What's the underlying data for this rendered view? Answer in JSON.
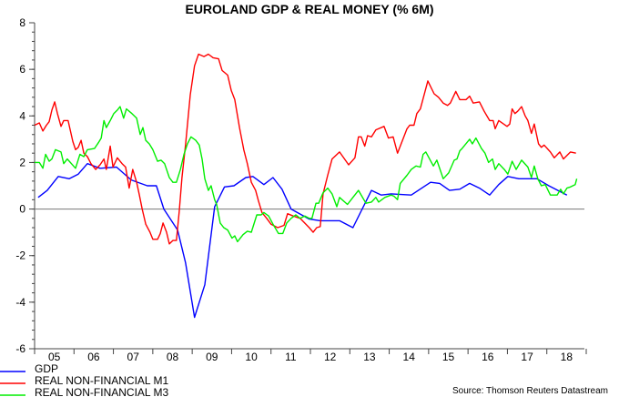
{
  "chart_data": {
    "type": "line",
    "title": "EUROLAND GDP & REAL MONEY (% 6M)",
    "xlabel": "",
    "ylabel": "",
    "xlim": [
      2005,
      2019
    ],
    "ylim": [
      -6,
      8
    ],
    "y_ticks": [
      -6,
      -4,
      -2,
      0,
      2,
      4,
      6,
      8
    ],
    "y_minor_step": 0.4,
    "x_tick_labels": [
      "05",
      "06",
      "07",
      "08",
      "09",
      "10",
      "11",
      "12",
      "13",
      "14",
      "15",
      "16",
      "17",
      "18"
    ],
    "zero_line": true,
    "grid": false,
    "legend_placement": "bottom-left",
    "source": "Source: Thomson Reuters Datastream",
    "series": [
      {
        "name": "GDP",
        "color": "#0000ff",
        "x": [
          2005.09,
          2005.32,
          2005.6,
          2005.88,
          2006.11,
          2006.34,
          2006.66,
          2007.08,
          2007.45,
          2007.86,
          2008.09,
          2008.28,
          2008.63,
          2008.83,
          2009.06,
          2009.32,
          2009.57,
          2009.82,
          2010.06,
          2010.36,
          2010.54,
          2010.82,
          2011.05,
          2011.28,
          2011.51,
          2011.97,
          2012.25,
          2012.74,
          2013.08,
          2013.55,
          2013.8,
          2014.05,
          2014.56,
          2015.05,
          2015.28,
          2015.53,
          2015.79,
          2016.04,
          2016.29,
          2016.55,
          2016.78,
          2017.01,
          2017.29,
          2017.75,
          2018.05,
          2018.51
        ],
        "y": [
          0.5,
          0.8,
          1.4,
          1.3,
          1.5,
          1.95,
          1.75,
          1.8,
          1.25,
          1.0,
          1.0,
          0,
          -0.9,
          -2.3,
          -4.65,
          -3.25,
          0.1,
          0.95,
          1.0,
          1.35,
          1.4,
          1.05,
          1.35,
          0.85,
          0,
          -0.43,
          -0.5,
          -0.5,
          -0.8,
          0.8,
          0.6,
          0.65,
          0.6,
          1.15,
          1.1,
          0.8,
          0.85,
          1.1,
          0.9,
          0.6,
          1.05,
          1.4,
          1.3,
          1.3,
          1.0,
          0.6
        ]
      },
      {
        "name": "REAL NON-FINANCIAL M1",
        "color": "#ff0000",
        "x": [
          2005.0,
          2005.12,
          2005.21,
          2005.3,
          2005.37,
          2005.44,
          2005.51,
          2005.58,
          2005.67,
          2005.74,
          2005.85,
          2005.97,
          2006.04,
          2006.11,
          2006.18,
          2006.25,
          2006.34,
          2006.43,
          2006.55,
          2006.66,
          2006.76,
          2006.82,
          2006.92,
          2006.99,
          2007.1,
          2007.22,
          2007.31,
          2007.4,
          2007.49,
          2007.59,
          2007.66,
          2007.73,
          2007.82,
          2007.93,
          2008.0,
          2008.12,
          2008.19,
          2008.26,
          2008.35,
          2008.42,
          2008.51,
          2008.6,
          2008.67,
          2008.74,
          2008.83,
          2008.95,
          2009.06,
          2009.16,
          2009.3,
          2009.41,
          2009.53,
          2009.67,
          2009.76,
          2009.9,
          2009.99,
          2010.08,
          2010.2,
          2010.31,
          2010.4,
          2010.5,
          2010.61,
          2010.68,
          2010.77,
          2010.89,
          2011.0,
          2011.17,
          2011.33,
          2011.42,
          2011.56,
          2011.74,
          2011.97,
          2012.07,
          2012.16,
          2012.25,
          2012.32,
          2012.44,
          2012.55,
          2012.74,
          2012.97,
          2013.13,
          2013.22,
          2013.29,
          2013.38,
          2013.45,
          2013.55,
          2013.66,
          2013.87,
          2013.98,
          2014.1,
          2014.21,
          2014.45,
          2014.52,
          2014.63,
          2014.7,
          2014.79,
          2014.98,
          2015.14,
          2015.25,
          2015.37,
          2015.48,
          2015.55,
          2015.69,
          2015.79,
          2015.95,
          2016.04,
          2016.13,
          2016.29,
          2016.41,
          2016.55,
          2016.64,
          2016.69,
          2016.78,
          2016.99,
          2017.06,
          2017.12,
          2017.19,
          2017.26,
          2017.36,
          2017.45,
          2017.52,
          2017.61,
          2017.68,
          2017.79,
          2017.86,
          2017.93,
          2018.09,
          2018.19,
          2018.33,
          2018.42,
          2018.6,
          2018.74
        ],
        "y": [
          3.6,
          3.7,
          3.35,
          3.6,
          3.75,
          4.25,
          4.6,
          4.1,
          3.55,
          3.8,
          3.8,
          2.9,
          2.55,
          2.65,
          2.95,
          2.4,
          2.25,
          1.95,
          1.7,
          1.9,
          2.15,
          1.7,
          2.7,
          1.8,
          2.2,
          1.95,
          1.8,
          0.9,
          1.7,
          1.15,
          0.6,
          0,
          -0.65,
          -1.0,
          -1.3,
          -1.3,
          -1.05,
          -0.6,
          -1.0,
          -1.5,
          -1.35,
          -1.35,
          -0.1,
          1.35,
          2.75,
          4.9,
          6.15,
          6.65,
          6.55,
          6.65,
          6.5,
          6.45,
          5.95,
          5.75,
          5.1,
          4.7,
          3.5,
          2.55,
          1.95,
          1.15,
          0.8,
          0.35,
          -0.15,
          -0.4,
          -0.65,
          -0.8,
          -0.7,
          -0.2,
          -0.3,
          -0.4,
          -0.8,
          -1.0,
          -0.8,
          -0.75,
          0.65,
          1.45,
          2.15,
          2.45,
          1.9,
          2.2,
          3.1,
          3.1,
          2.7,
          3.15,
          3.1,
          3.4,
          3.55,
          3.05,
          3.1,
          2.4,
          3.45,
          3.6,
          3.6,
          4.1,
          4.3,
          5.5,
          4.95,
          4.8,
          4.55,
          4.45,
          4.55,
          5.05,
          4.7,
          4.7,
          4.85,
          4.55,
          4.6,
          4.2,
          3.8,
          3.8,
          3.45,
          3.8,
          3.55,
          3.65,
          4.3,
          4.1,
          4.2,
          4.4,
          4.0,
          3.8,
          3.25,
          3.65,
          2.8,
          2.65,
          2.75,
          2.45,
          2.2,
          2.45,
          2.15,
          2.45,
          2.4
        ]
      },
      {
        "name": "REAL NON-FINANCIAL M3",
        "color": "#00ee00",
        "x": [
          2005.0,
          2005.12,
          2005.21,
          2005.28,
          2005.37,
          2005.44,
          2005.53,
          2005.67,
          2005.74,
          2005.83,
          2006.04,
          2006.15,
          2006.25,
          2006.34,
          2006.52,
          2006.62,
          2006.69,
          2006.76,
          2006.82,
          2006.92,
          2007.01,
          2007.1,
          2007.17,
          2007.26,
          2007.33,
          2007.47,
          2007.59,
          2007.68,
          2007.75,
          2007.82,
          2007.91,
          2008.0,
          2008.12,
          2008.21,
          2008.3,
          2008.42,
          2008.51,
          2008.6,
          2008.7,
          2008.79,
          2008.88,
          2008.97,
          2009.09,
          2009.18,
          2009.25,
          2009.32,
          2009.41,
          2009.48,
          2009.57,
          2009.62,
          2009.71,
          2009.8,
          2009.9,
          2010.01,
          2010.08,
          2010.15,
          2010.29,
          2010.4,
          2010.5,
          2010.64,
          2010.75,
          2010.82,
          2010.94,
          2011.05,
          2011.19,
          2011.3,
          2011.4,
          2011.51,
          2011.63,
          2011.74,
          2011.86,
          2011.97,
          2012.04,
          2012.14,
          2012.21,
          2012.32,
          2012.44,
          2012.55,
          2012.67,
          2012.74,
          2012.94,
          2013.08,
          2013.22,
          2013.41,
          2013.55,
          2013.66,
          2013.73,
          2013.89,
          2014.05,
          2014.12,
          2014.21,
          2014.28,
          2014.45,
          2014.56,
          2014.68,
          2014.79,
          2014.86,
          2014.93,
          2015.12,
          2015.21,
          2015.37,
          2015.51,
          2015.65,
          2015.72,
          2015.79,
          2015.85,
          2016.04,
          2016.11,
          2016.2,
          2016.34,
          2016.43,
          2016.52,
          2016.62,
          2016.69,
          2016.78,
          2016.92,
          2017.01,
          2017.12,
          2017.22,
          2017.36,
          2017.52,
          2017.61,
          2017.68,
          2017.77,
          2017.86,
          2017.96,
          2018.09,
          2018.26,
          2018.35,
          2018.42,
          2018.51,
          2018.6,
          2018.72,
          2018.76
        ],
        "y": [
          2.0,
          2.0,
          1.75,
          2.35,
          2.05,
          2.15,
          2.55,
          2.45,
          1.95,
          2.15,
          1.75,
          2.35,
          2.25,
          2.55,
          2.6,
          2.85,
          3.05,
          3.8,
          3.5,
          3.8,
          4.1,
          4.25,
          4.4,
          3.9,
          4.3,
          4.1,
          3.9,
          3.2,
          3.5,
          2.95,
          2.8,
          2.55,
          2.05,
          2.1,
          1.95,
          1.35,
          1.15,
          1.15,
          1.7,
          2.35,
          2.8,
          3.1,
          2.95,
          2.75,
          2.15,
          1.3,
          0.8,
          1.0,
          0.4,
          0.2,
          -0.6,
          -0.8,
          -0.9,
          -1.25,
          -1.15,
          -1.4,
          -1.1,
          -0.95,
          -1.0,
          -0.25,
          -0.25,
          -0.15,
          -0.3,
          -0.65,
          -1.05,
          -1.05,
          -0.6,
          -0.4,
          -0.25,
          -0.4,
          -0.3,
          -0.4,
          -0.4,
          0.25,
          0.25,
          0.7,
          0.9,
          0.65,
          0.1,
          0.5,
          0.2,
          0.5,
          0.8,
          0.25,
          0.3,
          0.5,
          0.3,
          0.5,
          0.6,
          0.55,
          0.4,
          1.1,
          1.45,
          1.7,
          1.85,
          1.8,
          2.35,
          2.45,
          1.85,
          2.1,
          1.3,
          1.55,
          2.1,
          2.15,
          2.5,
          2.6,
          3.0,
          2.8,
          3.05,
          2.6,
          2.4,
          2.0,
          2.15,
          1.7,
          1.95,
          1.7,
          1.5,
          2.05,
          1.7,
          2.1,
          1.8,
          1.35,
          1.85,
          1.3,
          1.0,
          1.05,
          0.6,
          0.6,
          0.85,
          0.65,
          0.9,
          0.95,
          1.05,
          1.3
        ]
      }
    ]
  }
}
